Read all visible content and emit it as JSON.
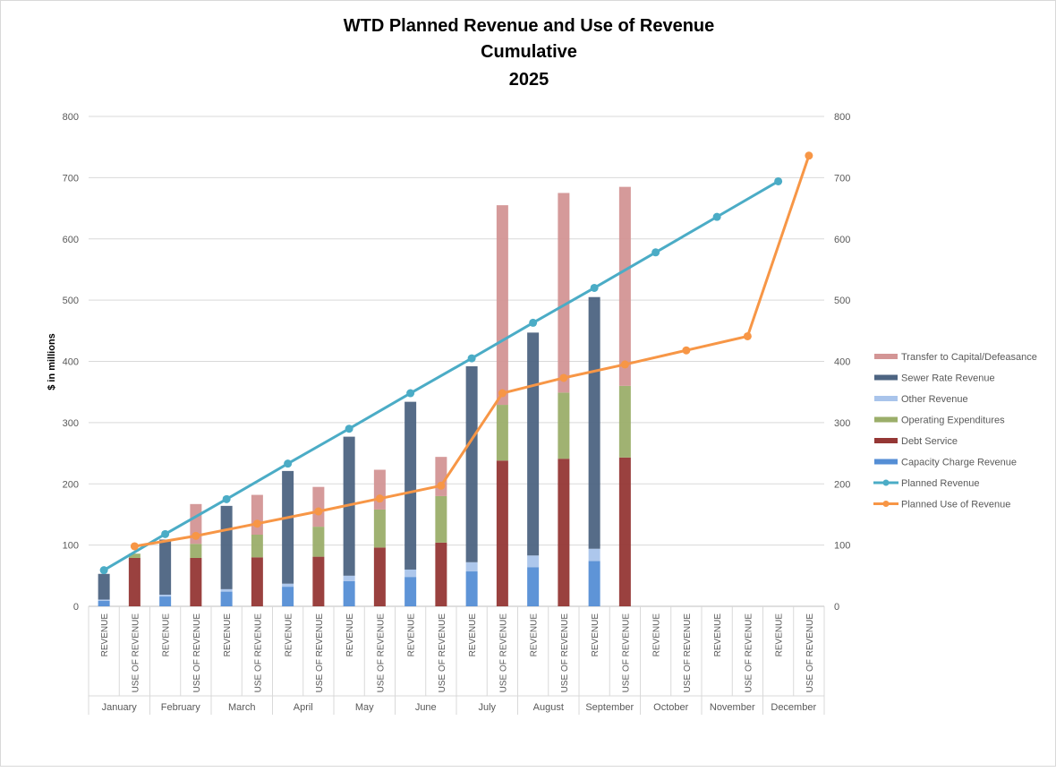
{
  "chart_data": {
    "type": "bar",
    "title": [
      "WTD Planned Revenue and Use of Revenue",
      "Cumulative",
      "2025"
    ],
    "ylabel": "$ in millions",
    "ylim": [
      0,
      800
    ],
    "yticks": [
      0,
      100,
      200,
      300,
      400,
      500,
      600,
      700,
      800
    ],
    "grid": true,
    "legend_position": "right",
    "months": [
      "January",
      "February",
      "March",
      "April",
      "May",
      "June",
      "July",
      "August",
      "September",
      "October",
      "November",
      "December"
    ],
    "sub_categories": [
      "REVENUE",
      "USE OF REVENUE"
    ],
    "stacked_series": [
      {
        "name": "Capacity Charge Revenue",
        "slot": "REVENUE",
        "color": "#558ed5",
        "values": [
          9,
          16,
          24,
          32,
          41,
          48,
          57,
          64,
          74,
          null,
          null,
          null
        ]
      },
      {
        "name": "Other Revenue",
        "slot": "REVENUE",
        "color": "#a9c4eb",
        "values": [
          2,
          3,
          4,
          5,
          9,
          12,
          15,
          19,
          20,
          null,
          null,
          null
        ]
      },
      {
        "name": "Sewer Rate Revenue",
        "slot": "REVENUE",
        "color": "#4d6482",
        "values": [
          42,
          90,
          136,
          184,
          227,
          274,
          320,
          364,
          411,
          null,
          null,
          null
        ]
      },
      {
        "name": "Debt Service",
        "slot": "USE OF REVENUE",
        "color": "#953735",
        "values": [
          79,
          79,
          80,
          81,
          96,
          104,
          238,
          241,
          243,
          null,
          null,
          null
        ]
      },
      {
        "name": "Operating Expenditures",
        "slot": "USE OF REVENUE",
        "color": "#9bae6a",
        "values": [
          7,
          23,
          37,
          49,
          62,
          76,
          91,
          108,
          117,
          null,
          null,
          null
        ]
      },
      {
        "name": "Transfer to Capital/Defeasance",
        "slot": "USE OF REVENUE",
        "color": "#d39595",
        "values": [
          0,
          65,
          65,
          65,
          65,
          64,
          326,
          326,
          325,
          null,
          null,
          null
        ]
      }
    ],
    "line_series": [
      {
        "name": "Planned Revenue",
        "slot": "REVENUE",
        "color": "#4bacc6",
        "values": [
          59,
          118,
          175,
          233,
          290,
          348,
          405,
          463,
          520,
          578,
          636,
          694
        ]
      },
      {
        "name": "Planned Use of Revenue",
        "slot": "USE OF REVENUE",
        "color": "#f79646",
        "values": [
          98,
          115,
          135,
          155,
          176,
          197,
          348,
          373,
          395,
          418,
          441,
          736
        ]
      }
    ],
    "legend": [
      "Transfer to Capital/Defeasance",
      "Sewer Rate Revenue",
      "Other Revenue",
      "Operating Expenditures",
      "Debt Service",
      "Capacity Charge Revenue",
      "Planned Revenue",
      "Planned Use of Revenue"
    ]
  }
}
